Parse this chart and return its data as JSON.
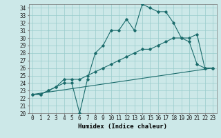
{
  "xlabel": "Humidex (Indice chaleur)",
  "bg_color": "#cce8e8",
  "grid_color": "#99cccc",
  "line_color": "#1a6b6b",
  "xlim": [
    -0.5,
    23.5
  ],
  "ylim": [
    20,
    34.5
  ],
  "xticks": [
    0,
    1,
    2,
    3,
    4,
    5,
    6,
    7,
    8,
    9,
    10,
    11,
    12,
    13,
    14,
    15,
    16,
    17,
    18,
    19,
    20,
    21,
    22,
    23
  ],
  "yticks": [
    20,
    21,
    22,
    23,
    24,
    25,
    26,
    27,
    28,
    29,
    30,
    31,
    32,
    33,
    34
  ],
  "series1_x": [
    0,
    1,
    2,
    3,
    4,
    5,
    6,
    7,
    8,
    9,
    10,
    11,
    12,
    13,
    14,
    15,
    16,
    17,
    18,
    19,
    20,
    21,
    22,
    23
  ],
  "series1_y": [
    22.5,
    22.5,
    23.0,
    23.5,
    24.0,
    24.0,
    20.0,
    24.5,
    28.0,
    29.0,
    31.0,
    31.0,
    32.5,
    31.0,
    34.5,
    34.0,
    33.5,
    33.5,
    32.0,
    30.0,
    29.5,
    26.5,
    26.0,
    26.0
  ],
  "series2_x": [
    0,
    1,
    2,
    3,
    4,
    5,
    6,
    7,
    8,
    9,
    10,
    11,
    12,
    13,
    14,
    15,
    16,
    17,
    18,
    19,
    20,
    21,
    22,
    23
  ],
  "series2_y": [
    22.5,
    22.5,
    23.0,
    23.5,
    24.5,
    24.5,
    24.5,
    25.0,
    25.5,
    26.0,
    26.5,
    27.0,
    27.5,
    28.0,
    28.5,
    28.5,
    29.0,
    29.5,
    30.0,
    30.0,
    30.0,
    30.5,
    26.0,
    26.0
  ],
  "series3_x": [
    0,
    23
  ],
  "series3_y": [
    22.5,
    26.0
  ],
  "tick_fontsize": 5.5,
  "xlabel_fontsize": 6.5
}
